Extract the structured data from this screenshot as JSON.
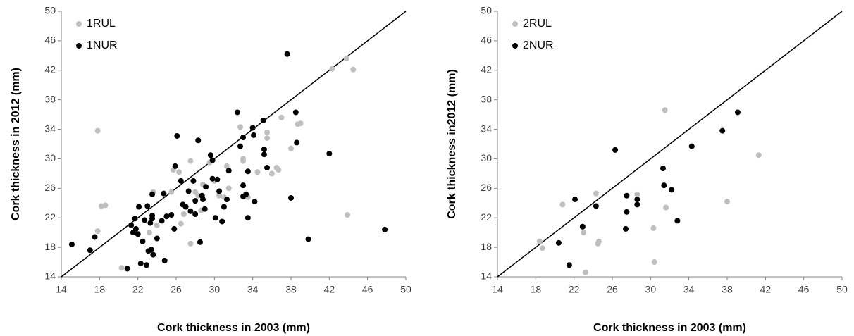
{
  "chart_data": [
    {
      "type": "scatter",
      "xlabel": "Cork thickness in 2003 (mm)",
      "ylabel": "Cork thickness in 2012 (mm)",
      "xlim": [
        14,
        50
      ],
      "ylim": [
        14,
        50
      ],
      "xticks": [
        14,
        18,
        22,
        26,
        30,
        34,
        38,
        42,
        46,
        50
      ],
      "yticks": [
        14,
        18,
        22,
        26,
        30,
        34,
        38,
        42,
        46,
        50
      ],
      "legend": "upper left",
      "series": [
        {
          "name": "1RUL",
          "color": "#bfbfbf",
          "x": [
            17.8,
            18.2,
            18.6,
            17.8,
            20.3,
            23.2,
            23.6,
            24,
            25.5,
            25.7,
            26.3,
            26.5,
            26.8,
            27.5,
            27.5,
            28,
            28.3,
            28.8,
            29.5,
            30,
            30.5,
            31,
            31.3,
            32.7,
            33,
            33.5,
            34.5,
            35.5,
            35.5,
            36,
            36.5,
            36.7,
            37,
            38,
            38.7,
            39,
            42.3,
            43.8,
            44.5,
            43.9,
            33,
            31.5,
            28.6
          ],
          "values": [
            33.8,
            23.6,
            23.7,
            20.2,
            15.2,
            20,
            25.5,
            21,
            25.5,
            28.5,
            28.2,
            21.2,
            22.5,
            29.7,
            18.5,
            25.5,
            25,
            26.5,
            29.5,
            27,
            25,
            24.8,
            29,
            34.3,
            29.7,
            24.8,
            28.2,
            33.6,
            32.8,
            28,
            28.8,
            28.5,
            35.6,
            31.4,
            34.7,
            34.8,
            42.2,
            43.6,
            42.1,
            22.4,
            30,
            26,
            23
          ]
        },
        {
          "name": "1NUR",
          "color": "#000000",
          "x": [
            15.1,
            17,
            17.5,
            20.9,
            21.3,
            21.5,
            21.7,
            21.8,
            22,
            22.1,
            22.3,
            22.5,
            22.7,
            22.9,
            23,
            23.1,
            23.3,
            23.4,
            23.5,
            23.5,
            23.5,
            23.6,
            24,
            24.5,
            24.7,
            24.8,
            25,
            25.5,
            25.8,
            25.9,
            26.1,
            26.5,
            26.7,
            27,
            27.3,
            27.5,
            27.8,
            28,
            28,
            28.3,
            28.5,
            28.7,
            28.8,
            29,
            29.1,
            29.6,
            29.8,
            29.8,
            30.1,
            30.3,
            30.5,
            30.8,
            31,
            31.3,
            31.5,
            32.4,
            32.7,
            33,
            33,
            33,
            33.3,
            33.5,
            33.5,
            34,
            34.2,
            34.1,
            35.1,
            35.2,
            35.2,
            35.5,
            37.6,
            38,
            38.5,
            38.6,
            39.8,
            42,
            47.8
          ],
          "values": [
            18.4,
            17.6,
            19.4,
            15.1,
            21,
            20,
            21.9,
            20.5,
            19.8,
            23.5,
            15.8,
            18.8,
            21.7,
            15.6,
            23.6,
            17.5,
            21.3,
            17.7,
            22.3,
            21.9,
            25.2,
            17,
            19.2,
            21.6,
            25.3,
            16.2,
            22.2,
            22.4,
            20.5,
            29,
            33.1,
            27,
            23.8,
            23.5,
            25.6,
            22.9,
            27,
            24.3,
            22.5,
            32.5,
            18.7,
            25,
            24.5,
            23.2,
            26.2,
            30.5,
            29.8,
            27.3,
            22,
            27.2,
            25.6,
            21.5,
            23.5,
            24.5,
            28.4,
            36.3,
            31.7,
            32.9,
            26.4,
            24.9,
            25.2,
            22,
            28.3,
            34.2,
            24.2,
            33.2,
            35.2,
            31.3,
            30.6,
            28.8,
            44.2,
            24.7,
            36.3,
            32.2,
            19.1,
            30.7,
            20.4
          ]
        }
      ]
    },
    {
      "type": "scatter",
      "xlabel": "Cork thickness in 2003 (mm)",
      "ylabel": "Cork thickness in2012 (mm)",
      "xlim": [
        14,
        50
      ],
      "ylim": [
        14,
        50
      ],
      "xticks": [
        14,
        18,
        22,
        26,
        30,
        34,
        38,
        42,
        46,
        50
      ],
      "yticks": [
        14,
        18,
        22,
        26,
        30,
        34,
        38,
        42,
        46,
        50
      ],
      "legend": "upper left",
      "series": [
        {
          "name": "2RUL",
          "color": "#bfbfbf",
          "x": [
            18.4,
            18.7,
            20.8,
            23,
            23.2,
            24.3,
            24.5,
            24.6,
            28.6,
            30.3,
            30.4,
            31.5,
            31.6,
            38,
            41.3
          ],
          "values": [
            18.8,
            17.9,
            23.8,
            20,
            14.6,
            25.3,
            18.5,
            18.8,
            25.2,
            20.6,
            16,
            36.6,
            23.4,
            24.2,
            30.5
          ]
        },
        {
          "name": "2NUR",
          "color": "#000000",
          "x": [
            20.4,
            21.5,
            22.1,
            22.9,
            24.3,
            26.3,
            27.4,
            27.5,
            27.5,
            28.6,
            28.6,
            31.3,
            31.4,
            32.2,
            32.8,
            34.3,
            37.5,
            39.1
          ],
          "values": [
            18.6,
            15.6,
            24.5,
            20.8,
            23.6,
            31.2,
            20.5,
            22.8,
            25,
            24.5,
            23.8,
            28.7,
            26.4,
            25.8,
            21.6,
            31.7,
            33.8,
            36.3
          ]
        }
      ]
    }
  ]
}
